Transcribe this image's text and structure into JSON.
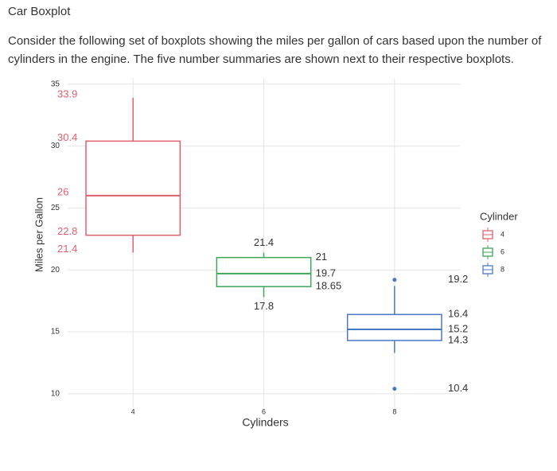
{
  "page": {
    "title": "Car Boxplot",
    "text": "Consider the following set of boxplots showing the miles per gallon of cars based upon the number of cylinders in the engine. The five number summaries are shown next to their respective boxplots."
  },
  "chart_data": {
    "type": "boxplot",
    "x_label": "Cylinders",
    "y_label": "Miles per Gallon",
    "categories": [
      "4",
      "6",
      "8"
    ],
    "legend_title": "Cylinder",
    "legend_position": "right",
    "ylim": [
      8.9,
      35.5
    ],
    "yticks": [
      10,
      15,
      20,
      25,
      30,
      35
    ],
    "grid": true,
    "series": [
      {
        "name": "4",
        "color": "#e0606e",
        "min": 21.4,
        "q1": 22.8,
        "median": 26,
        "q3": 30.4,
        "max": 33.9,
        "outliers": []
      },
      {
        "name": "6",
        "color": "#3fa65a",
        "min": 17.8,
        "q1": 18.65,
        "median": 19.7,
        "q3": 21,
        "max": 21.4,
        "outliers": []
      },
      {
        "name": "8",
        "color": "#4a78c8",
        "min": 13.3,
        "q1": 14.3,
        "median": 15.2,
        "q3": 16.4,
        "max": 18.7,
        "outliers": [
          19.2,
          10.4
        ]
      }
    ]
  }
}
